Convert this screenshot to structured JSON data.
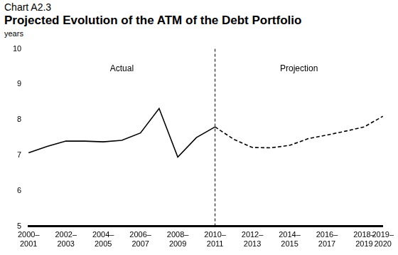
{
  "chart_data": {
    "type": "line",
    "subtitle": "Chart A2.3",
    "title": "Projected Evolution of the ATM of the Debt Portfolio",
    "y_label": "years",
    "categories": [
      "2000–2001",
      null,
      "2002–2003",
      null,
      "2004–2005",
      null,
      "2006–2007",
      null,
      "2008–2009",
      null,
      "2010–2011",
      null,
      "2012–2013",
      null,
      "2014–2015",
      null,
      "2016–2017",
      null,
      "2018–2019",
      "2019–2020"
    ],
    "series": [
      {
        "name": "Actual",
        "color": "#000000",
        "line_style": "solid",
        "values": [
          7.07,
          7.25,
          7.4,
          7.4,
          7.38,
          7.42,
          7.63,
          8.32,
          6.95,
          7.5,
          7.8,
          null,
          null,
          null,
          null,
          null,
          null,
          null,
          null,
          null
        ]
      },
      {
        "name": "Projection",
        "color": "#000000",
        "line_style": "dashed",
        "values": [
          null,
          null,
          null,
          null,
          null,
          null,
          null,
          null,
          null,
          null,
          7.8,
          7.45,
          7.22,
          7.21,
          7.28,
          7.47,
          7.57,
          7.68,
          7.8,
          8.1
        ]
      }
    ],
    "ylim": [
      5,
      10
    ],
    "yticks": [
      5,
      6,
      7,
      8,
      9,
      10
    ],
    "grid": false
  }
}
